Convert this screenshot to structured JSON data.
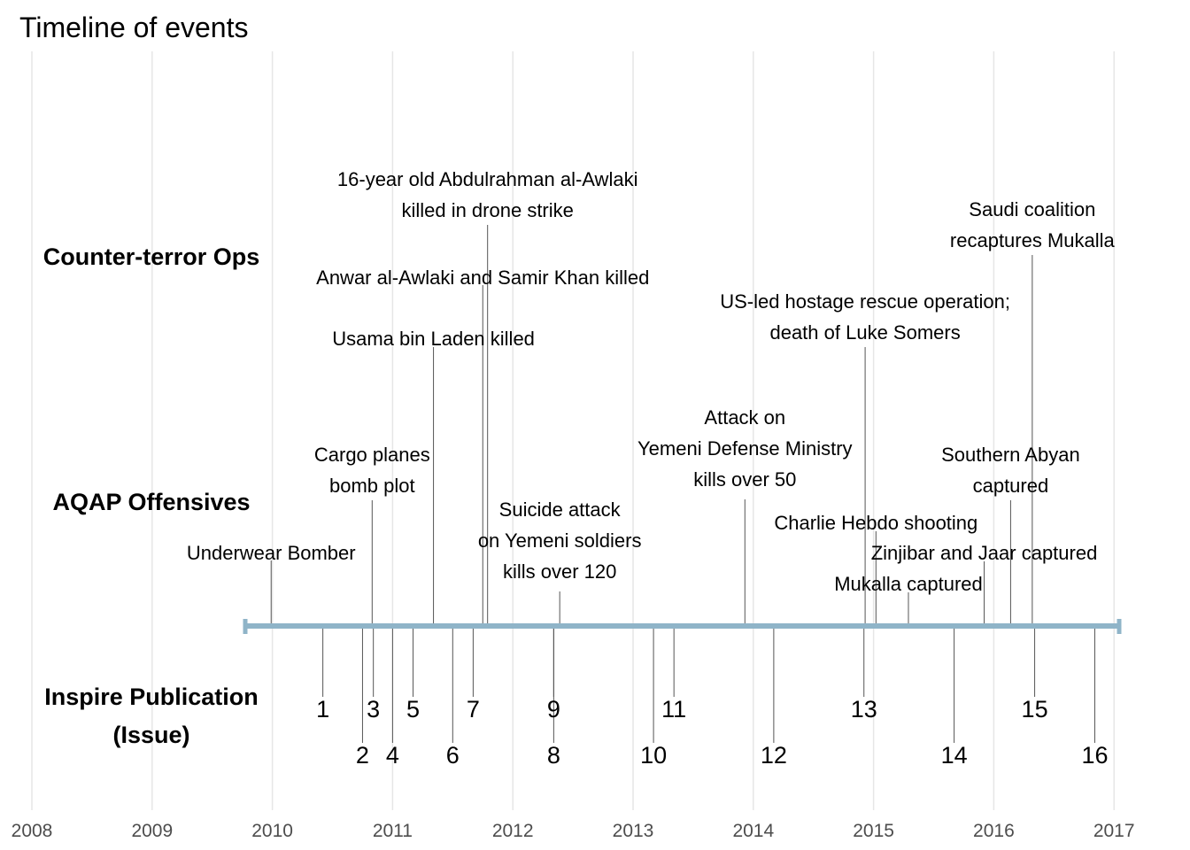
{
  "title": "Timeline of events",
  "row_labels": {
    "counter_terror": "Counter-terror Ops",
    "aqap": "AQAP Offensives",
    "inspire_line1": "Inspire Publication",
    "inspire_line2": "(Issue)"
  },
  "colors": {
    "axis_bar": "#8fb4c8",
    "grid": "#e6e6e6",
    "stem": "#555555"
  },
  "chart_data": {
    "type": "timeline",
    "title": "Timeline of events",
    "x_range": [
      2008,
      2017
    ],
    "grid": true,
    "years": [
      "2008",
      "2009",
      "2010",
      "2011",
      "2012",
      "2013",
      "2014",
      "2015",
      "2016",
      "2017"
    ],
    "events": [
      {
        "category": "AQAP Offensives",
        "date": 2009.99,
        "lines": [
          "Underwear Bomber"
        ]
      },
      {
        "category": "AQAP Offensives",
        "date": 2010.83,
        "lines": [
          "Cargo planes",
          "bomb plot"
        ]
      },
      {
        "category": "Counter-terror Ops",
        "date": 2011.34,
        "lines": [
          "Usama bin Laden killed"
        ]
      },
      {
        "category": "Counter-terror Ops",
        "date": 2011.75,
        "lines": [
          "Anwar al-Awlaki and Samir Khan killed"
        ]
      },
      {
        "category": "Counter-terror Ops",
        "date": 2011.79,
        "lines": [
          "16-year old Abdulrahman al-Awlaki",
          "killed in drone strike"
        ]
      },
      {
        "category": "AQAP Offensives",
        "date": 2012.39,
        "lines": [
          "Suicide attack",
          "on Yemeni soldiers",
          "kills over 120"
        ]
      },
      {
        "category": "AQAP Offensives",
        "date": 2013.93,
        "lines": [
          "Attack on",
          "Yemeni Defense Ministry",
          "kills over 50"
        ]
      },
      {
        "category": "Counter-terror Ops",
        "date": 2014.93,
        "lines": [
          "US-led hostage rescue operation;",
          "death of Luke Somers"
        ]
      },
      {
        "category": "AQAP Offensives",
        "date": 2015.02,
        "lines": [
          "Charlie Hebdo shooting"
        ]
      },
      {
        "category": "AQAP Offensives",
        "date": 2015.29,
        "lines": [
          "Mukalla captured"
        ]
      },
      {
        "category": "AQAP Offensives",
        "date": 2015.92,
        "lines": [
          "Zinjibar and Jaar captured"
        ]
      },
      {
        "category": "AQAP Offensives",
        "date": 2016.14,
        "lines": [
          "Southern Abyan",
          "captured"
        ]
      },
      {
        "category": "Counter-terror Ops",
        "date": 2016.32,
        "lines": [
          "Saudi coalition",
          "recaptures Mukalla"
        ]
      }
    ],
    "issues": [
      {
        "issue": "1",
        "date": 2010.42
      },
      {
        "issue": "2",
        "date": 2010.75
      },
      {
        "issue": "3",
        "date": 2010.84
      },
      {
        "issue": "4",
        "date": 2011.0
      },
      {
        "issue": "5",
        "date": 2011.17
      },
      {
        "issue": "6",
        "date": 2011.5
      },
      {
        "issue": "7",
        "date": 2011.67
      },
      {
        "issue": "8",
        "date": 2012.34
      },
      {
        "issue": "9",
        "date": 2012.34
      },
      {
        "issue": "10",
        "date": 2013.17
      },
      {
        "issue": "11",
        "date": 2013.34
      },
      {
        "issue": "12",
        "date": 2014.17
      },
      {
        "issue": "13",
        "date": 2014.92
      },
      {
        "issue": "14",
        "date": 2015.67
      },
      {
        "issue": "15",
        "date": 2016.34
      },
      {
        "issue": "16",
        "date": 2016.84
      }
    ]
  }
}
